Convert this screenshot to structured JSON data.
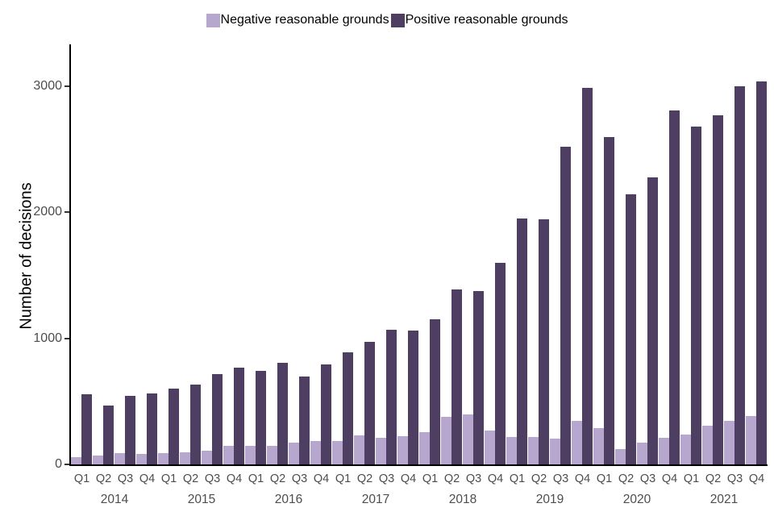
{
  "chart_data": {
    "type": "bar",
    "title": "",
    "xlabel": "",
    "ylabel": "Number of decisions",
    "ylim": [
      0,
      3300
    ],
    "yticks": [
      0,
      1000,
      2000,
      3000
    ],
    "grid": false,
    "legend_position": "top",
    "years": [
      "2014",
      "2015",
      "2016",
      "2017",
      "2018",
      "2019",
      "2020",
      "2021"
    ],
    "quarters": [
      "Q1",
      "Q2",
      "Q3",
      "Q4"
    ],
    "series": [
      {
        "name": "Negative reasonable grounds",
        "color": "#b7a6cd",
        "values": [
          60,
          70,
          90,
          80,
          90,
          95,
          110,
          145,
          145,
          145,
          175,
          185,
          185,
          230,
          210,
          225,
          255,
          375,
          395,
          270,
          215,
          220,
          205,
          345,
          290,
          120,
          170,
          210,
          235,
          305,
          345,
          385
        ]
      },
      {
        "name": "Positive reasonable grounds",
        "color": "#4e3e62",
        "values": [
          555,
          465,
          545,
          565,
          600,
          635,
          715,
          765,
          745,
          805,
          695,
          790,
          890,
          975,
          1070,
          1065,
          1150,
          1390,
          1375,
          1600,
          1950,
          1945,
          2520,
          2985,
          2595,
          2140,
          2275,
          2810,
          2680,
          2770,
          3000,
          3040
        ]
      }
    ]
  }
}
